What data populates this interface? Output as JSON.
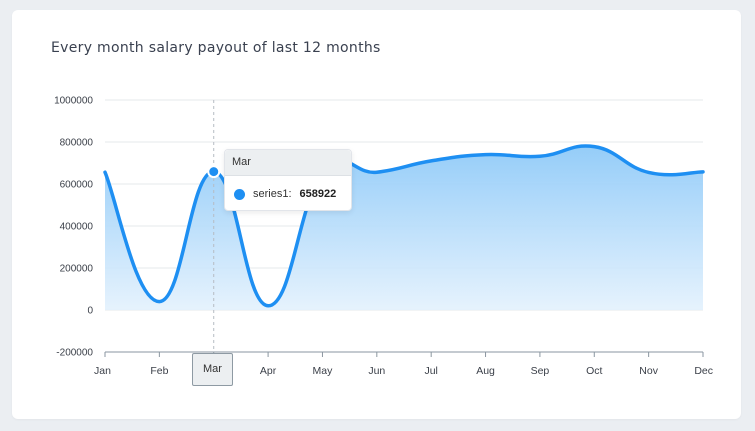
{
  "title": "Every month salary payout of last 12 months",
  "chart_data": {
    "type": "area",
    "title": "Every month salary payout of last 12 months",
    "categories": [
      "Jan",
      "Feb",
      "Mar",
      "Apr",
      "May",
      "Jun",
      "Jul",
      "Aug",
      "Sep",
      "Oct",
      "Nov",
      "Dec"
    ],
    "series": [
      {
        "name": "series1",
        "values": [
          656000,
          40000,
          658922,
          20000,
          650000,
          656000,
          710000,
          740000,
          732000,
          778000,
          655000,
          658000
        ]
      }
    ],
    "y_ticks": [
      "1000000",
      "800000",
      "600000",
      "400000",
      "200000",
      "0",
      "-200000"
    ],
    "ylim": [
      -200000,
      1000000
    ],
    "grid": true,
    "curve": "smooth",
    "color": "#1e8ff2"
  },
  "tooltip": {
    "category": "Mar",
    "series_name": "series1:",
    "value": "658922"
  },
  "crosshair_label": "Mar"
}
